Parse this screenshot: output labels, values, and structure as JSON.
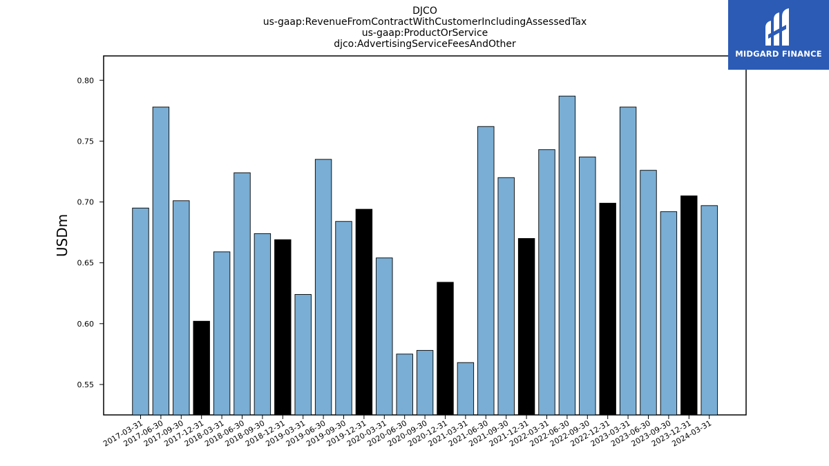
{
  "chart_data": {
    "type": "bar",
    "title_lines": [
      "DJCO",
      "us-gaap:RevenueFromContractWithCustomerIncludingAssessedTax",
      "us-gaap:ProductOrService",
      "djco:AdvertisingServiceFeesAndOther"
    ],
    "xlabel": "",
    "ylabel": "USDm",
    "ylim": [
      0.525,
      0.82
    ],
    "yticks": [
      0.55,
      0.6,
      0.65,
      0.7,
      0.75,
      0.8
    ],
    "ytick_labels": [
      "0.55",
      "0.60",
      "0.65",
      "0.70",
      "0.75",
      "0.80"
    ],
    "grid": false,
    "categories": [
      "2017-03-31",
      "2017-06-30",
      "2017-09-30",
      "2017-12-31",
      "2018-03-31",
      "2018-06-30",
      "2018-09-30",
      "2018-12-31",
      "2019-03-31",
      "2019-06-30",
      "2019-09-30",
      "2019-12-31",
      "2020-03-31",
      "2020-06-30",
      "2020-09-30",
      "2020-12-31",
      "2021-03-31",
      "2021-06-30",
      "2021-09-30",
      "2021-12-31",
      "2022-03-31",
      "2022-06-30",
      "2022-09-30",
      "2022-12-31",
      "2023-03-31",
      "2023-06-30",
      "2023-09-30",
      "2023-12-31",
      "2024-03-31"
    ],
    "values": [
      0.695,
      0.778,
      0.701,
      0.602,
      0.659,
      0.724,
      0.674,
      0.669,
      0.624,
      0.735,
      0.684,
      0.694,
      0.654,
      0.575,
      0.578,
      0.634,
      0.568,
      0.762,
      0.72,
      0.67,
      0.743,
      0.787,
      0.737,
      0.699,
      0.778,
      0.726,
      0.692,
      0.705,
      0.697
    ],
    "highlight_quarter_end": "12-31",
    "colors": {
      "bar": "#7aaed4",
      "highlight_bar": "#000000",
      "edge": "#000000"
    }
  },
  "logo": {
    "text": "MIDGARD FINANCE",
    "background": "#2b5bb5"
  }
}
